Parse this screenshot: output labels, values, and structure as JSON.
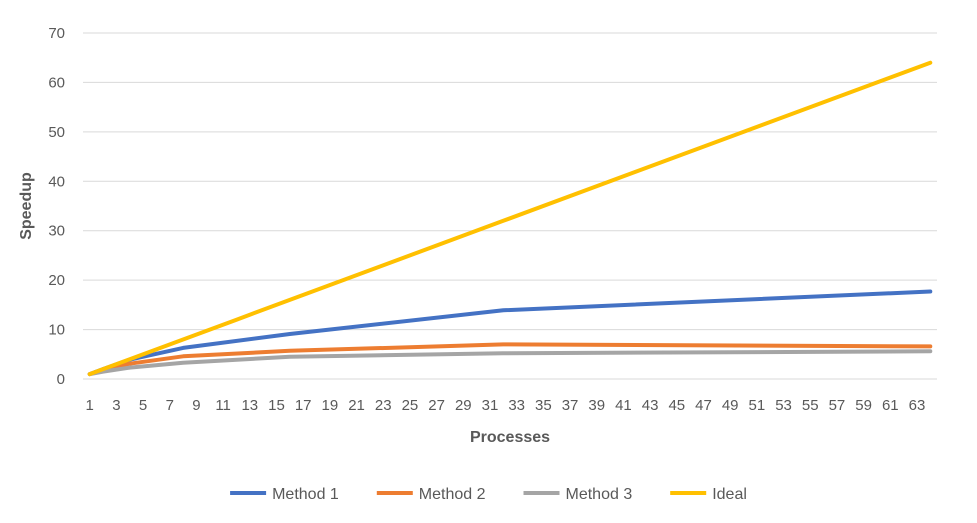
{
  "chart_data": {
    "type": "line",
    "title": "",
    "xlabel": "Processes",
    "ylabel": "Speedup",
    "xlim": [
      1,
      64
    ],
    "ylim": [
      0,
      70
    ],
    "grid": true,
    "legend": "bottom",
    "x_ticks": [
      1,
      3,
      5,
      7,
      9,
      11,
      13,
      15,
      17,
      19,
      21,
      23,
      25,
      27,
      29,
      31,
      33,
      35,
      37,
      39,
      41,
      43,
      45,
      47,
      49,
      51,
      53,
      55,
      57,
      59,
      61,
      63
    ],
    "y_ticks": [
      0,
      10,
      20,
      30,
      40,
      50,
      60,
      70
    ],
    "series": [
      {
        "name": "Method 1",
        "color": "#4472C4",
        "x": [
          1,
          2,
          4,
          8,
          16,
          32,
          64
        ],
        "y": [
          1,
          2,
          3.9,
          6.3,
          9.1,
          13.9,
          17.7
        ]
      },
      {
        "name": "Method 2",
        "color": "#ED7D31",
        "x": [
          1,
          2,
          4,
          8,
          16,
          32,
          64
        ],
        "y": [
          1,
          1.9,
          3.1,
          4.6,
          5.7,
          7.0,
          6.6
        ]
      },
      {
        "name": "Method 3",
        "color": "#A5A5A5",
        "x": [
          1,
          2,
          4,
          8,
          16,
          32,
          64
        ],
        "y": [
          1,
          1.5,
          2.3,
          3.3,
          4.5,
          5.2,
          5.6
        ]
      },
      {
        "name": "Ideal",
        "color": "#FFC000",
        "x": [
          1,
          2,
          4,
          8,
          12,
          13,
          16,
          32,
          64
        ],
        "y": [
          1,
          2,
          4,
          8,
          12,
          13,
          16,
          32,
          64
        ]
      }
    ]
  }
}
